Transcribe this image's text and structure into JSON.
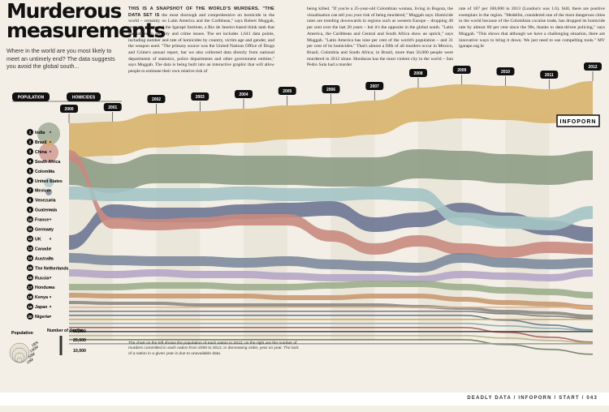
{
  "header": {
    "title": "Murderous measurements",
    "intro": "Where in the world are you most likely to meet an untimely end? The data suggests you avoid the global south...",
    "lead": "THIS IS A SNAPSHOT OF THE WORLD'S MURDERS. \"THE DATA SET IS",
    "columns": [
      "the most thorough and comprehensive on homicide in the world – certainly on Latin America and the Caribbean,\" says Robert Muggah, research director of the Igarapé Institute, a Rio de Janeiro-based think tank that specialises in security and crime issues. The set includes 1,641 data points, including number and rate of homicides by country, victim age and gender, and the weapon used. \"The primary source was the United Nations Office of Drugs and Crime's annual report, but we also collected data directly from national departments of statistics, police departments and other government entities,\" says Muggah. The data is being built into an interactive graphic that will allow people to estimate their own relative risk of",
      "being killed. \"If you're a 25-year-old Colombian woman, living in Bogota, the visualisation can tell you your risk of being murdered,\" Muggah says. Homicide rates are trending downwards in regions such as western Europe – dropping 40 per cent over the last 20 years – but it's the opposite in the global south. \"Latin America, the Caribbean and Central and South Africa show an uptick,\" says Muggah. \"Latin America has nine per cent of the world's population – and 31 per cent of its homicides.\" That's almost a fifth of all murders occur in Mexico, Brazil, Colombia and South Africa; in Brazil, more than 56,000 people were murdered in 2012 alone. Honduras has the most violent city in the world – San Pedro Sula had a murder",
      "rate of 187 per 100,000 in 2013 (London's was 1.6). Still, there are positive exemplars in the region. \"Medellin, considered one of the most dangerous cities in the world because of the Colombian cocaine trade, has dropped its homicide rate by almost 80 per cent since the 90s, thanks to data-driven policing,\" says Muggah. \"This shows that although we have a challenging situation, there are innovative ways to bring it down. We just need to use compelling tools.\" MV igarape.org.br"
    ]
  },
  "chart": {
    "population_label": "POPULATION",
    "homicides_label": "HOMICIDES",
    "brand": "INFOPORN",
    "years": [
      "2000",
      "2001",
      "2002",
      "2003",
      "2004",
      "2005",
      "2006",
      "2007",
      "2008",
      "2009",
      "2010",
      "2011",
      "2012"
    ],
    "countries": [
      {
        "number": 1,
        "name": "India"
      },
      {
        "number": 2,
        "name": "Brazil"
      },
      {
        "number": 3,
        "name": "China"
      },
      {
        "number": 4,
        "name": "South Africa"
      },
      {
        "number": 5,
        "name": "Colombia"
      },
      {
        "number": 6,
        "name": "United States"
      },
      {
        "number": 7,
        "name": "Mexico"
      },
      {
        "number": 8,
        "name": "Venezuela"
      },
      {
        "number": 9,
        "name": "Guatemala"
      },
      {
        "number": 10,
        "name": "France"
      },
      {
        "number": 11,
        "name": "Germany"
      },
      {
        "number": 12,
        "name": "UK"
      },
      {
        "number": 13,
        "name": "Canada"
      },
      {
        "number": 14,
        "name": "Australia"
      },
      {
        "number": 15,
        "name": "The Netherlands"
      },
      {
        "number": 16,
        "name": "Russia"
      },
      {
        "number": 17,
        "name": "Honduras"
      },
      {
        "number": 18,
        "name": "Kenya"
      },
      {
        "number": 19,
        "name": "Japan"
      },
      {
        "number": 20,
        "name": "Nigeria"
      }
    ]
  },
  "legend": {
    "population_title": "Population",
    "population_sizes": [
      "10M",
      "50M",
      "100M",
      "1BN"
    ],
    "deaths_title": "Number of deaths",
    "deaths_sizes": [
      "50,000",
      "20,000",
      "10,000"
    ]
  },
  "note": "The chart on the left shows the population of each nation in 2012; on the right are the number of murders committed in each nation from 2000 to 2012, in decreasing order, year on year. The lack of a nation in a given year is due to unavailable data.",
  "footer": "DEADLY DATA / INFOPORN / START / 043"
}
